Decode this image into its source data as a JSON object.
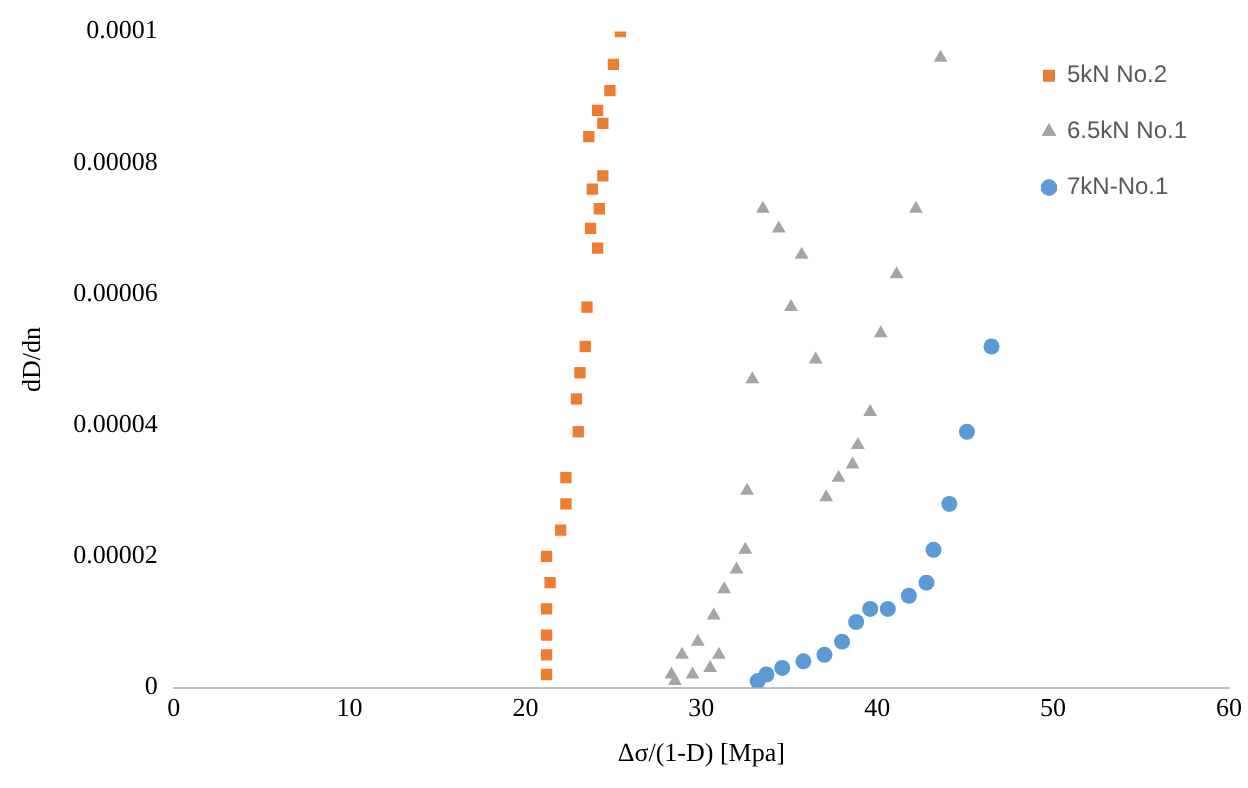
{
  "chart_data": {
    "type": "scatter",
    "xlabel": "Δσ/(1-D) [Mpa]",
    "ylabel": "dD/dn",
    "xlim": [
      0,
      60
    ],
    "xticks": [
      0,
      10,
      20,
      30,
      40,
      50,
      60
    ],
    "ylim": [
      0,
      0.0001
    ],
    "yticks": [
      0,
      {
        "value": 2e-05,
        "label": "0.00002"
      },
      {
        "value": 4e-05,
        "label": "0.00004"
      },
      {
        "value": 6e-05,
        "label": "0.00006"
      },
      {
        "value": 8e-05,
        "label": "0.00008"
      },
      0.0001
    ],
    "grid": false,
    "legend": "top right",
    "series": [
      {
        "name": "5kN No.2",
        "color": "#ed7d31",
        "marker": "square",
        "x": [
          25.4,
          25.0,
          24.8,
          24.1,
          24.4,
          23.6,
          24.4,
          23.8,
          24.2,
          23.7,
          24.1,
          23.5,
          23.4,
          23.1,
          22.9,
          23.0,
          22.3,
          22.3,
          22.0,
          21.2,
          21.4,
          21.2,
          21.2,
          21.2,
          21.2
        ],
        "values": [
          0.0001,
          9.5e-05,
          9.1e-05,
          8.8e-05,
          8.6e-05,
          8.4e-05,
          7.8e-05,
          7.6e-05,
          7.3e-05,
          7e-05,
          6.7e-05,
          5.8e-05,
          5.2e-05,
          4.8e-05,
          4.4e-05,
          3.9e-05,
          3.2e-05,
          2.8e-05,
          2.4e-05,
          2e-05,
          1.6e-05,
          1.2e-05,
          8e-06,
          5e-06,
          2e-06
        ]
      },
      {
        "name": "6.5kN No.1",
        "color": "#a5a5a5",
        "marker": "triangle",
        "x": [
          43.6,
          33.5,
          42.2,
          34.4,
          35.7,
          41.1,
          35.1,
          40.2,
          36.5,
          32.9,
          39.6,
          38.9,
          38.6,
          37.8,
          37.1,
          32.6,
          32.5,
          32.0,
          31.3,
          30.7,
          29.8,
          28.9,
          28.3,
          28.5,
          29.5,
          30.5,
          31.0
        ],
        "values": [
          9.6e-05,
          7.3e-05,
          7.3e-05,
          7e-05,
          6.6e-05,
          6.3e-05,
          5.8e-05,
          5.4e-05,
          5e-05,
          4.7e-05,
          4.2e-05,
          3.7e-05,
          3.4e-05,
          3.2e-05,
          2.9e-05,
          3e-05,
          2.1e-05,
          1.8e-05,
          1.5e-05,
          1.1e-05,
          7e-06,
          5e-06,
          2e-06,
          1e-06,
          2e-06,
          3e-06,
          5e-06
        ]
      },
      {
        "name": "7kN-No.1",
        "color": "#5b9bd5",
        "marker": "circle",
        "x": [
          46.5,
          45.1,
          44.1,
          43.2,
          42.8,
          41.8,
          40.6,
          39.6,
          38.8,
          38.0,
          37.0,
          35.8,
          34.6,
          33.7,
          33.2
        ],
        "values": [
          5.2e-05,
          3.9e-05,
          2.8e-05,
          2.1e-05,
          1.6e-05,
          1.4e-05,
          1.2e-05,
          1.2e-05,
          1e-05,
          7e-06,
          5e-06,
          4e-06,
          3e-06,
          2e-06,
          1e-06
        ]
      }
    ]
  }
}
